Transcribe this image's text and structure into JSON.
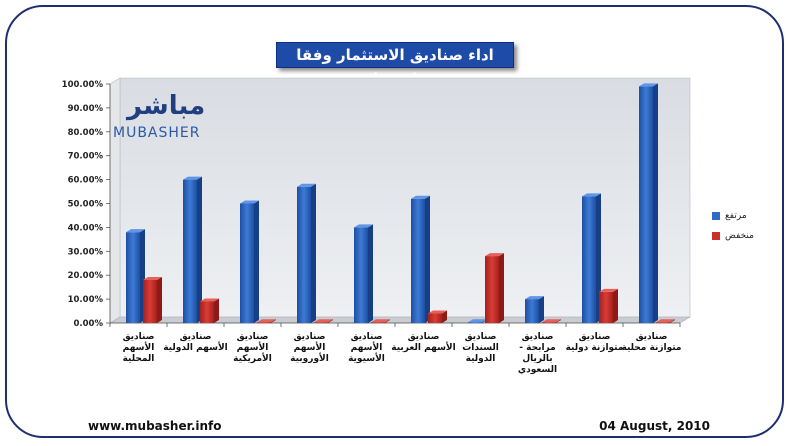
{
  "chart_data": {
    "type": "bar",
    "title": "اداء صناديق الاستثمار وفقا لفئتها",
    "categories": [
      [
        "صناديق",
        "الأسهم",
        "المحلية"
      ],
      [
        "صناديق",
        "الأسهم الدولية"
      ],
      [
        "صناديق",
        "الأسهم",
        "الأمريكية"
      ],
      [
        "صناديق",
        "الأسهم",
        "الأوروبية"
      ],
      [
        "صناديق",
        "الأسهم",
        "الأسيوية"
      ],
      [
        "صناديق",
        "الأسهم العربية"
      ],
      [
        "صناديق",
        "السندات",
        "الدولية"
      ],
      [
        "صناديق",
        "مرابحة -",
        "بالريال",
        "السعودي"
      ],
      [
        "صناديق",
        "متوازنة دولية"
      ],
      [
        "صناديق",
        "متوازنة محلية"
      ]
    ],
    "series": [
      {
        "name": "مرتفع",
        "color": "#2f6bc6",
        "values": [
          38,
          60,
          50,
          57,
          40,
          52,
          0,
          10,
          53,
          99
        ]
      },
      {
        "name": "منخفض",
        "color": "#c9302c",
        "values": [
          18,
          9,
          0,
          0,
          0,
          4,
          28,
          0,
          13,
          0
        ]
      }
    ],
    "ylim": [
      0,
      100
    ],
    "yticks": [
      "0.00%",
      "10.00%",
      "20.00%",
      "30.00%",
      "40.00%",
      "50.00%",
      "60.00%",
      "70.00%",
      "80.00%",
      "90.00%",
      "100.00%"
    ],
    "legend_position": "right",
    "grid": false
  },
  "logo": {
    "arabic": "مباشر",
    "english": "MUBASHER"
  },
  "footer": {
    "website": "www.mubasher.info",
    "date": "04 August, 2010"
  }
}
